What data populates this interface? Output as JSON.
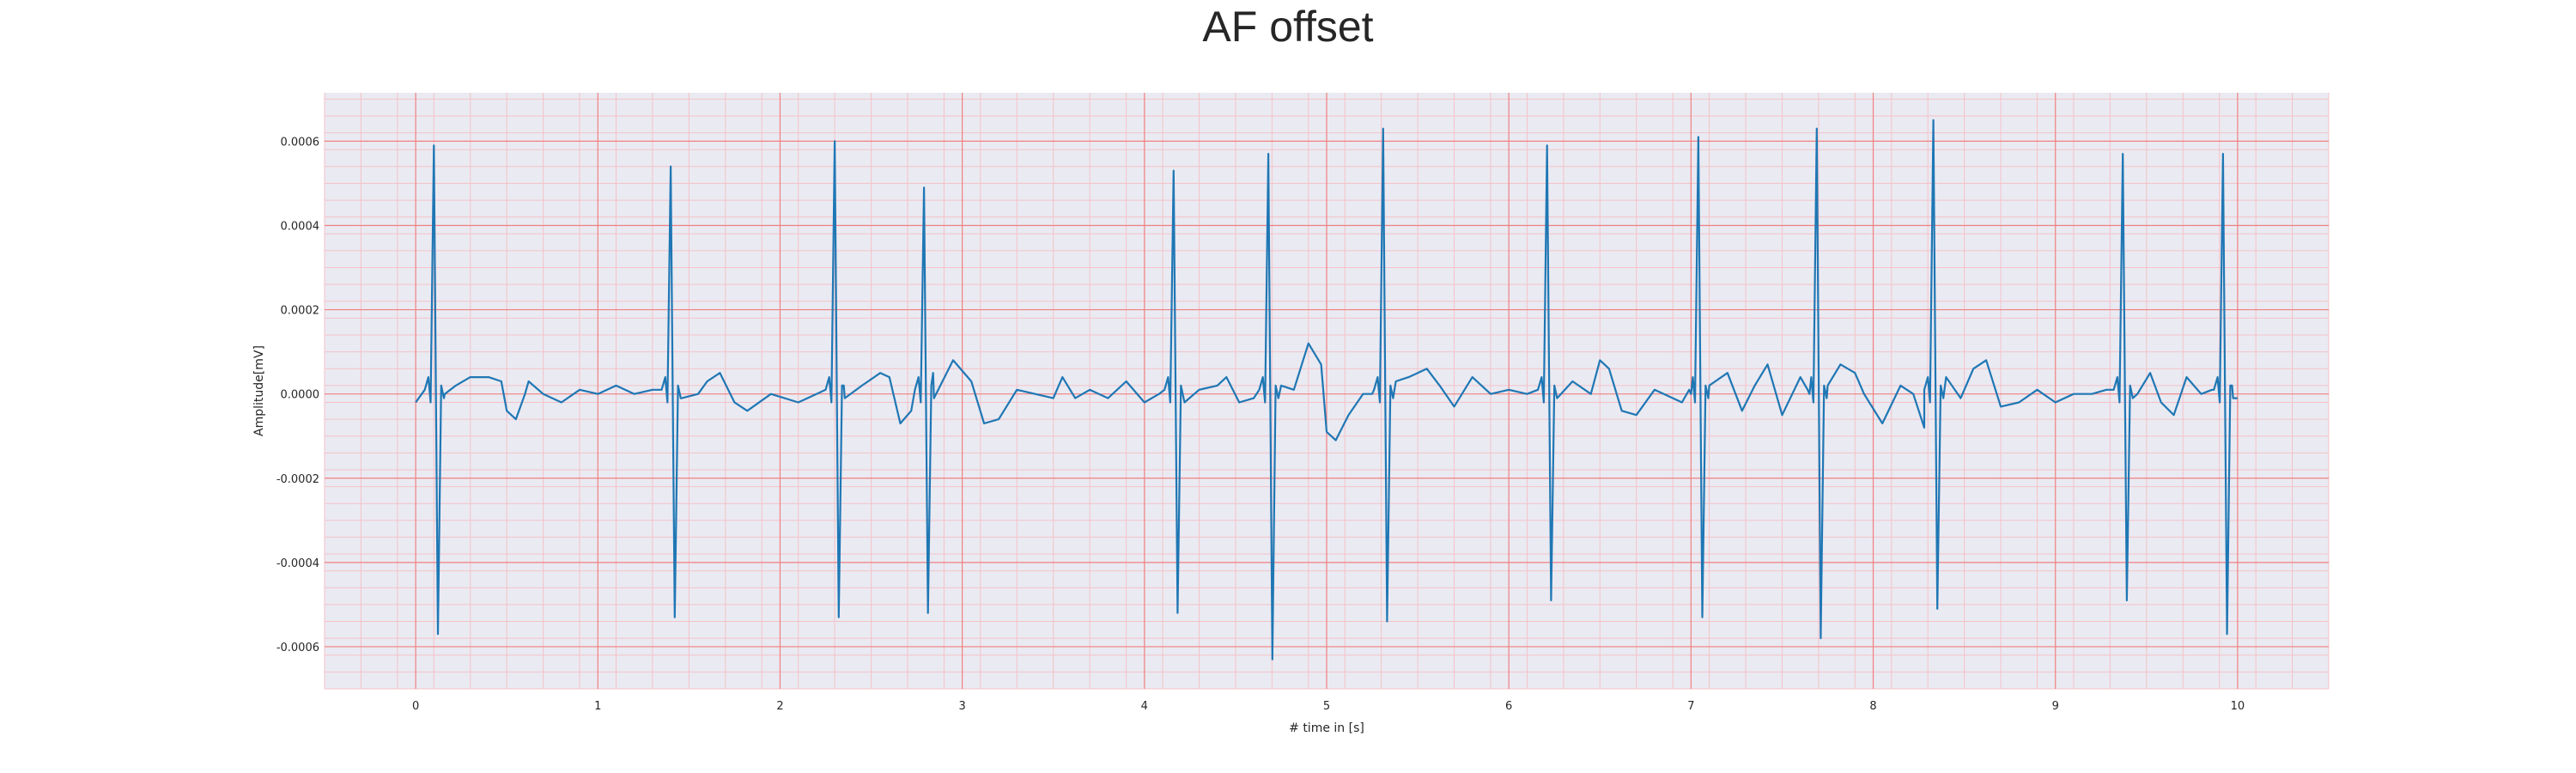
{
  "chart_data": {
    "type": "line",
    "title": "AF offset",
    "xlabel": "# time in [s]",
    "ylabel": "Amplitude[mV]",
    "xlim": [
      -0.5,
      10.5
    ],
    "ylim": [
      -0.0007,
      0.000715
    ],
    "grid": true,
    "legend": "none",
    "x_ticks": [
      0,
      1,
      2,
      3,
      4,
      5,
      6,
      7,
      8,
      9,
      10
    ],
    "x_tick_labels": [
      "0",
      "1",
      "2",
      "3",
      "4",
      "5",
      "6",
      "7",
      "8",
      "9",
      "10"
    ],
    "y_ticks": [
      -0.0006,
      -0.0004,
      -0.0002,
      0.0,
      0.0002,
      0.0004,
      0.0006
    ],
    "y_tick_labels": [
      "-0.0006",
      "-0.0004",
      "-0.0002",
      "0.0000",
      "0.0002",
      "0.0004",
      "0.0006"
    ],
    "colors": {
      "line": "#1f77b4",
      "background": "#eaeaf2",
      "grid_major": "#f08080",
      "grid_minor": "#f4c2c8"
    },
    "series": [
      {
        "beats": [
          {
            "t": 0.1,
            "peak": 0.00059,
            "trough": -0.00057
          },
          {
            "t": 1.4,
            "peak": 0.00054,
            "trough": -0.00053
          },
          {
            "t": 2.3,
            "peak": 0.0006,
            "trough": -0.00053
          },
          {
            "t": 2.79,
            "peak": 0.00049,
            "trough": -0.00052
          },
          {
            "t": 4.16,
            "peak": 0.00053,
            "trough": -0.00052
          },
          {
            "t": 4.68,
            "peak": 0.00057,
            "trough": -0.00063
          },
          {
            "t": 5.31,
            "peak": 0.00063,
            "trough": -0.00054
          },
          {
            "t": 6.21,
            "peak": 0.00059,
            "trough": -0.00049
          },
          {
            "t": 7.04,
            "peak": 0.00061,
            "trough": -0.00053
          },
          {
            "t": 7.69,
            "peak": 0.00063,
            "trough": -0.00058
          },
          {
            "t": 8.33,
            "peak": 0.00065,
            "trough": -0.00051
          },
          {
            "t": 9.37,
            "peak": 0.00057,
            "trough": -0.00049
          },
          {
            "t": 9.92,
            "peak": 0.00057,
            "trough": -0.00057
          }
        ],
        "baseline_points": [
          [
            0.0,
            -2e-05
          ],
          [
            0.05,
            1e-05
          ],
          [
            0.16,
            0.0
          ],
          [
            0.22,
            2e-05
          ],
          [
            0.3,
            4e-05
          ],
          [
            0.4,
            4e-05
          ],
          [
            0.47,
            3e-05
          ],
          [
            0.5,
            -4e-05
          ],
          [
            0.55,
            -6e-05
          ],
          [
            0.6,
            0.0
          ],
          [
            0.62,
            3e-05
          ],
          [
            0.7,
            0.0
          ],
          [
            0.8,
            -2e-05
          ],
          [
            0.9,
            1e-05
          ],
          [
            1.0,
            0.0
          ],
          [
            1.1,
            2e-05
          ],
          [
            1.2,
            0.0
          ],
          [
            1.3,
            1e-05
          ],
          [
            1.46,
            -1e-05
          ],
          [
            1.55,
            0.0
          ],
          [
            1.6,
            3e-05
          ],
          [
            1.67,
            5e-05
          ],
          [
            1.75,
            -2e-05
          ],
          [
            1.82,
            -4e-05
          ],
          [
            1.95,
            0.0
          ],
          [
            2.1,
            -2e-05
          ],
          [
            2.2,
            0.0
          ],
          [
            2.35,
            2e-05
          ],
          [
            2.45,
            2e-05
          ],
          [
            2.55,
            5e-05
          ],
          [
            2.6,
            4e-05
          ],
          [
            2.66,
            -7e-05
          ],
          [
            2.72,
            -4e-05
          ],
          [
            2.84,
            5e-05
          ],
          [
            2.95,
            8e-05
          ],
          [
            3.05,
            3e-05
          ],
          [
            3.12,
            -7e-05
          ],
          [
            3.2,
            -6e-05
          ],
          [
            3.3,
            1e-05
          ],
          [
            3.4,
            0.0
          ],
          [
            3.5,
            -1e-05
          ],
          [
            3.55,
            4e-05
          ],
          [
            3.62,
            -1e-05
          ],
          [
            3.7,
            1e-05
          ],
          [
            3.8,
            -1e-05
          ],
          [
            3.9,
            3e-05
          ],
          [
            4.0,
            -2e-05
          ],
          [
            4.08,
            0.0
          ],
          [
            4.22,
            -2e-05
          ],
          [
            4.3,
            1e-05
          ],
          [
            4.4,
            2e-05
          ],
          [
            4.45,
            4e-05
          ],
          [
            4.52,
            -2e-05
          ],
          [
            4.6,
            -1e-05
          ],
          [
            4.75,
            2e-05
          ],
          [
            4.82,
            1e-05
          ],
          [
            4.9,
            0.00012
          ],
          [
            4.97,
            7e-05
          ],
          [
            5.0,
            -9e-05
          ],
          [
            5.05,
            -0.00011
          ],
          [
            5.12,
            -5e-05
          ],
          [
            5.2,
            0.0
          ],
          [
            5.25,
            0.0
          ],
          [
            5.38,
            3e-05
          ],
          [
            5.45,
            4e-05
          ],
          [
            5.55,
            6e-05
          ],
          [
            5.62,
            2e-05
          ],
          [
            5.7,
            -3e-05
          ],
          [
            5.8,
            4e-05
          ],
          [
            5.9,
            0.0
          ],
          [
            6.0,
            1e-05
          ],
          [
            6.1,
            0.0
          ],
          [
            6.26,
            0.0
          ],
          [
            6.35,
            3e-05
          ],
          [
            6.45,
            0.0
          ],
          [
            6.5,
            8e-05
          ],
          [
            6.55,
            6e-05
          ],
          [
            6.62,
            -4e-05
          ],
          [
            6.7,
            -5e-05
          ],
          [
            6.8,
            1e-05
          ],
          [
            6.95,
            -2e-05
          ],
          [
            7.0,
            0.0
          ],
          [
            7.1,
            2e-05
          ],
          [
            7.2,
            5e-05
          ],
          [
            7.28,
            -4e-05
          ],
          [
            7.35,
            2e-05
          ],
          [
            7.42,
            7e-05
          ],
          [
            7.5,
            -5e-05
          ],
          [
            7.6,
            4e-05
          ],
          [
            7.65,
            0.0
          ],
          [
            7.75,
            2e-05
          ],
          [
            7.82,
            7e-05
          ],
          [
            7.9,
            5e-05
          ],
          [
            7.95,
            0.0
          ],
          [
            8.05,
            -7e-05
          ],
          [
            8.15,
            2e-05
          ],
          [
            8.22,
            0.0
          ],
          [
            8.28,
            -8e-05
          ],
          [
            8.4,
            4e-05
          ],
          [
            8.48,
            -1e-05
          ],
          [
            8.55,
            6e-05
          ],
          [
            8.62,
            8e-05
          ],
          [
            8.7,
            -3e-05
          ],
          [
            8.8,
            -2e-05
          ],
          [
            8.9,
            1e-05
          ],
          [
            9.0,
            -2e-05
          ],
          [
            9.1,
            0.0
          ],
          [
            9.2,
            0.0
          ],
          [
            9.28,
            1e-05
          ],
          [
            9.45,
            0.0
          ],
          [
            9.52,
            5e-05
          ],
          [
            9.58,
            -2e-05
          ],
          [
            9.65,
            -5e-05
          ],
          [
            9.72,
            4e-05
          ],
          [
            9.8,
            0.0
          ],
          [
            9.86,
            1e-05
          ],
          [
            9.97,
            2e-05
          ],
          [
            10.0,
            -1e-05
          ]
        ]
      }
    ]
  }
}
